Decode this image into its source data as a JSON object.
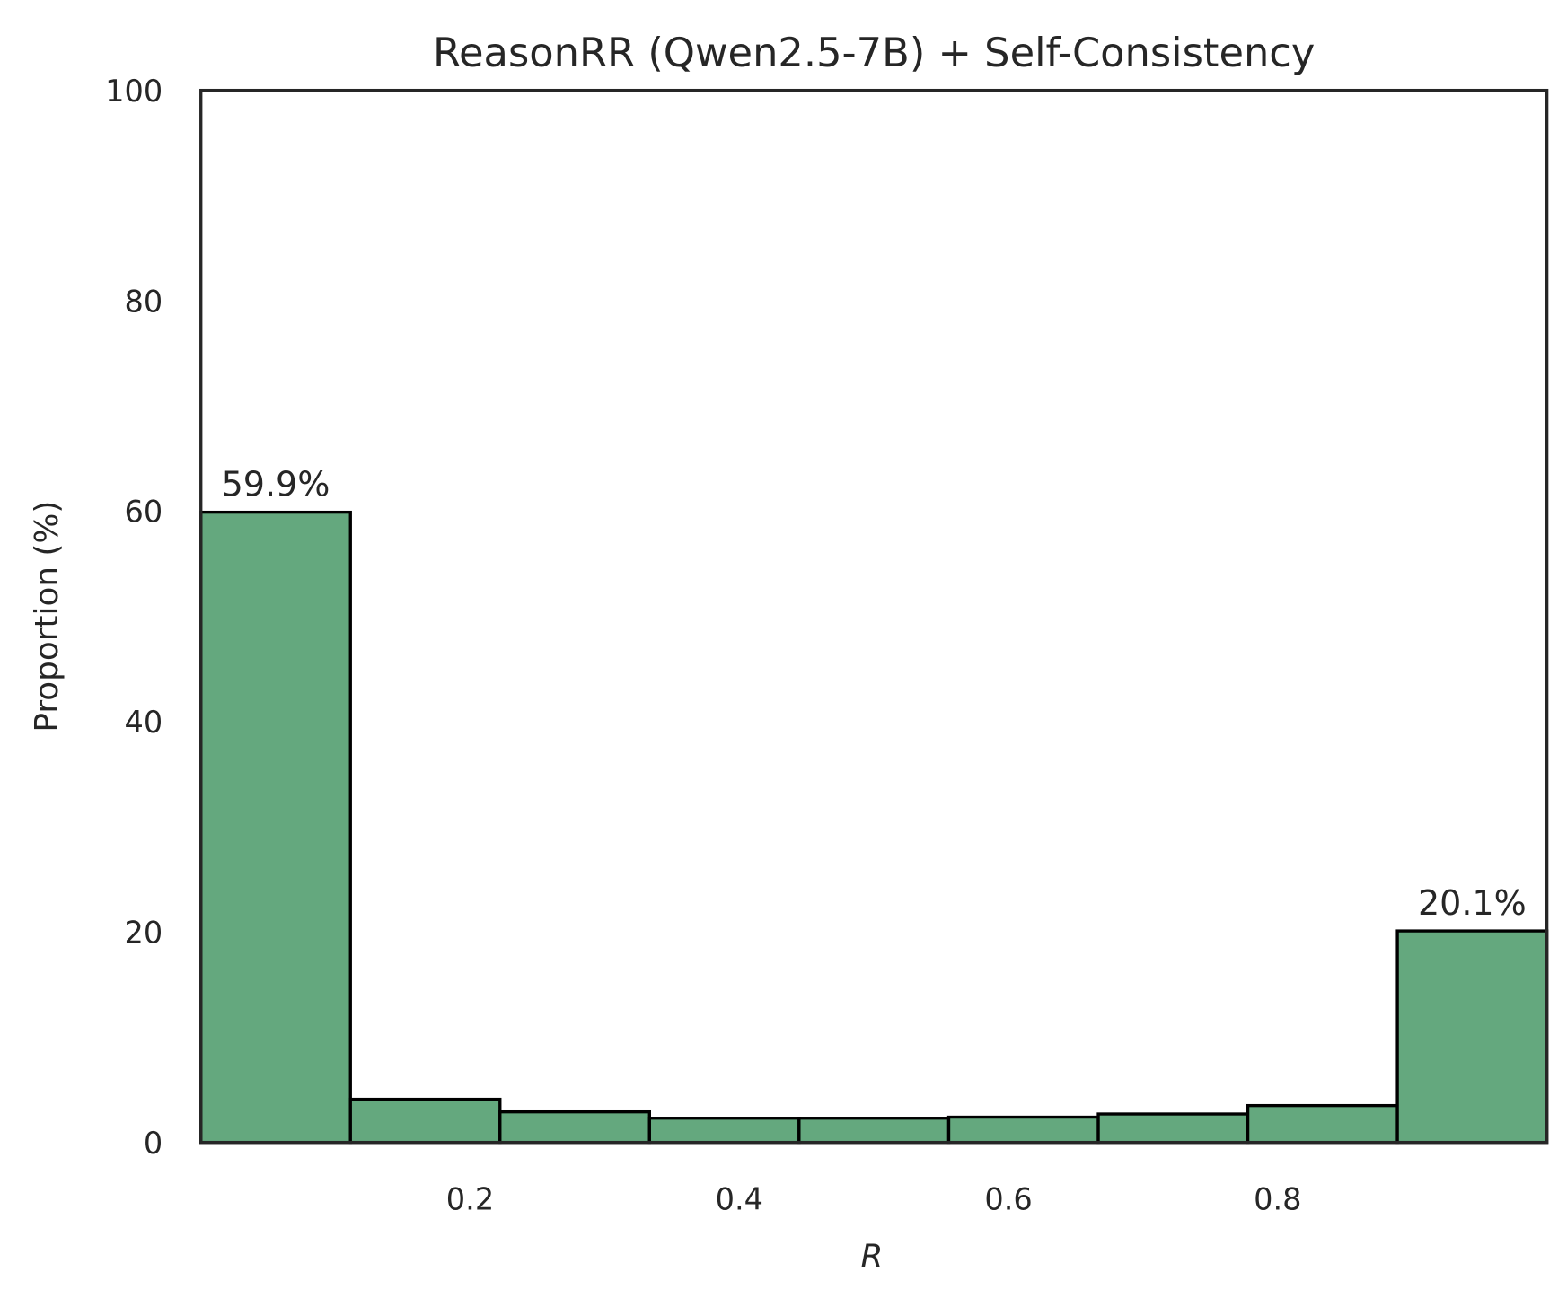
{
  "chart_data": {
    "type": "bar",
    "title": "ReasonRR (Qwen2.5-7B) + Self-Consistency",
    "xlabel": "R",
    "ylabel": "Proportion (%)",
    "xlim": [
      0,
      1
    ],
    "ylim": [
      0,
      100
    ],
    "bin_edges": [
      0,
      0.1111,
      0.2222,
      0.3333,
      0.4444,
      0.5556,
      0.6667,
      0.7778,
      0.8889,
      1.0
    ],
    "values": [
      59.9,
      4.1,
      2.9,
      2.3,
      2.3,
      2.4,
      2.7,
      3.5,
      20.1
    ],
    "data_labels": [
      {
        "bin": 0,
        "text": "59.9%"
      },
      {
        "bin": 8,
        "text": "20.1%"
      }
    ],
    "xticks": [
      0.2,
      0.4,
      0.6,
      0.8
    ],
    "xtick_labels": [
      "0.2",
      "0.4",
      "0.6",
      "0.8"
    ],
    "yticks": [
      0,
      20,
      40,
      60,
      80,
      100
    ],
    "ytick_labels": [
      "0",
      "20",
      "40",
      "60",
      "80",
      "100"
    ],
    "grid": false,
    "bar_color": "#64a87e",
    "edge_color": "#000000"
  }
}
